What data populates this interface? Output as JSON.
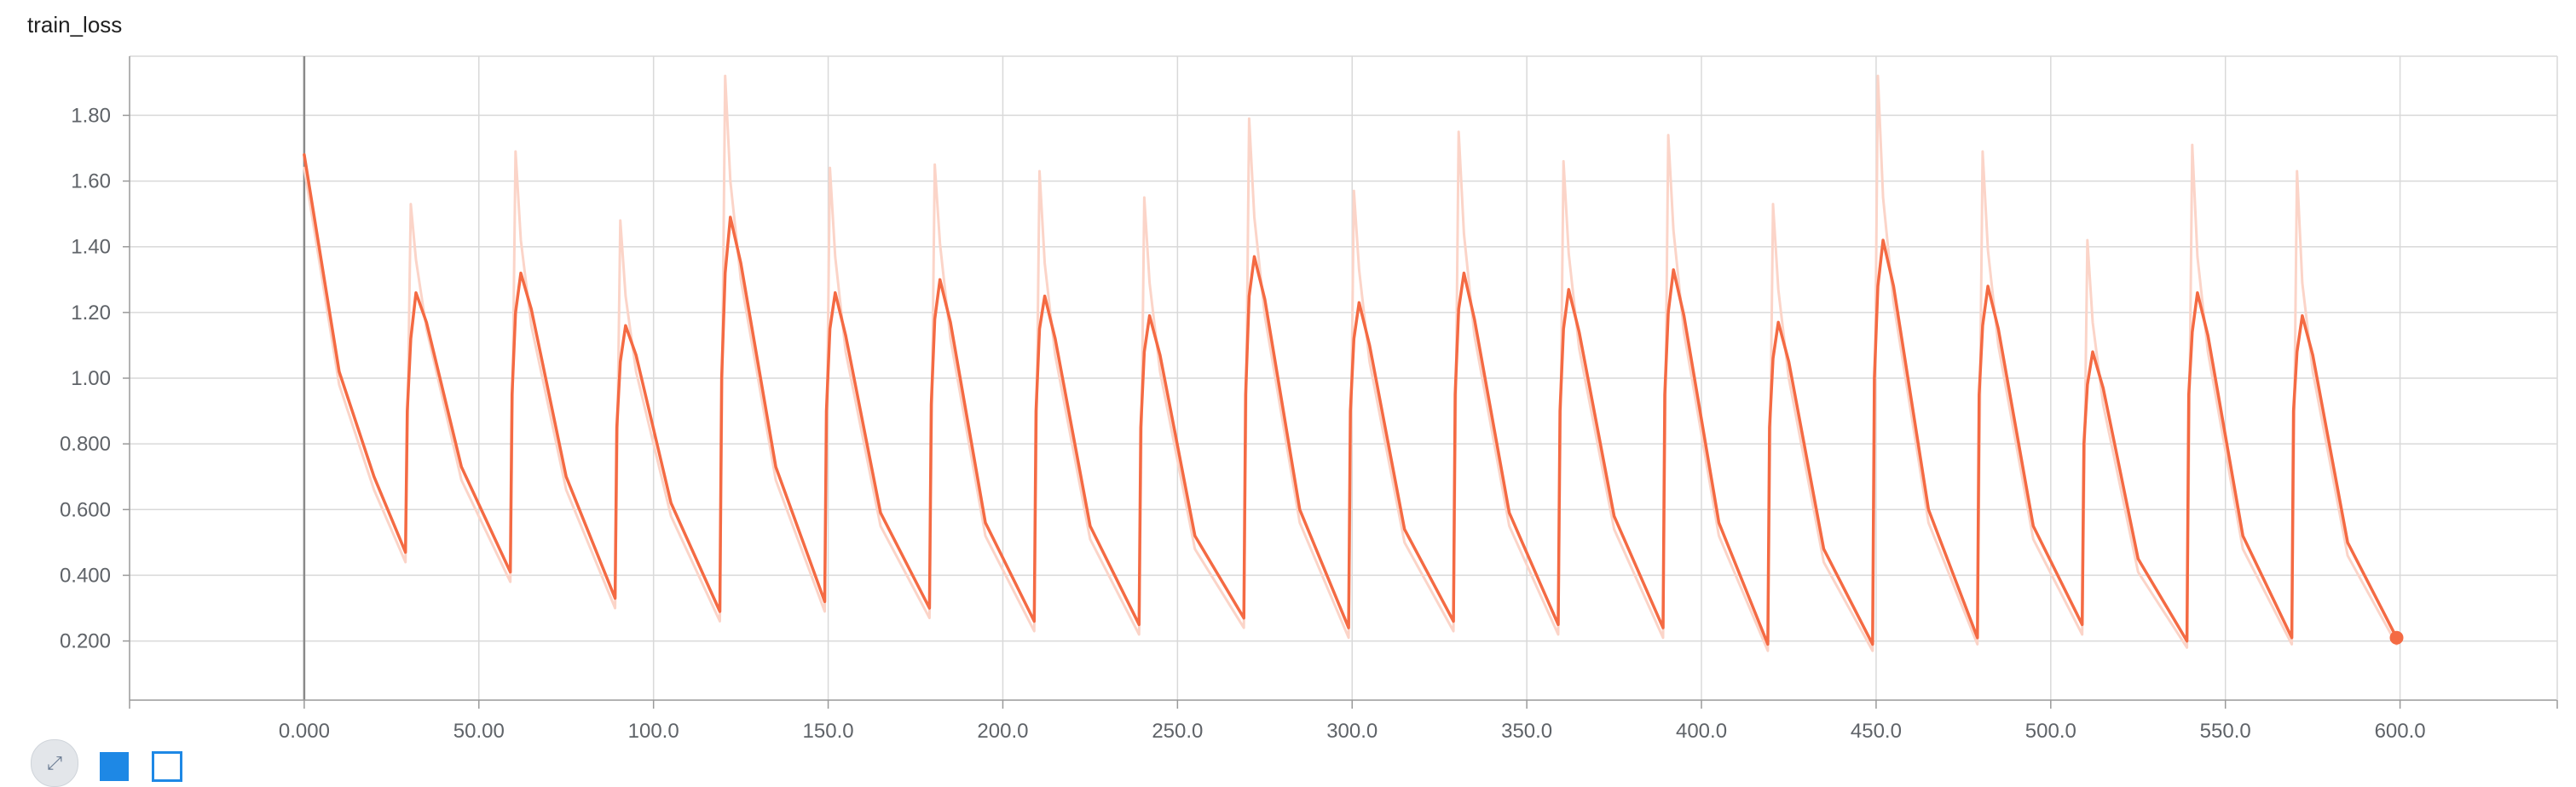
{
  "card": {
    "title": "train_loss"
  },
  "toolbar": {
    "expand_icon": "expand-icon",
    "log_scale_icon": "log-scale-icon",
    "fit_domain_icon": "fit-domain-icon"
  },
  "colors": {
    "smoothed": "#f46a43",
    "raw": "#fbd4c8",
    "grid": "#d9d9d9",
    "axis": "#9a9a9a"
  },
  "chart_data": {
    "type": "line",
    "title": "train_loss",
    "xlabel": "",
    "ylabel": "",
    "xlim": [
      -50,
      645
    ],
    "ylim": [
      0.02,
      1.98
    ],
    "x_ticks": [
      {
        "value": 0,
        "label": "0.000"
      },
      {
        "value": 50,
        "label": "50.00"
      },
      {
        "value": 100,
        "label": "100.0"
      },
      {
        "value": 150,
        "label": "150.0"
      },
      {
        "value": 200,
        "label": "200.0"
      },
      {
        "value": 250,
        "label": "250.0"
      },
      {
        "value": 300,
        "label": "300.0"
      },
      {
        "value": 350,
        "label": "350.0"
      },
      {
        "value": 400,
        "label": "400.0"
      },
      {
        "value": 450,
        "label": "450.0"
      },
      {
        "value": 500,
        "label": "500.0"
      },
      {
        "value": 550,
        "label": "550.0"
      },
      {
        "value": 600,
        "label": "600.0"
      }
    ],
    "y_ticks": [
      {
        "value": 0.2,
        "label": "0.200"
      },
      {
        "value": 0.4,
        "label": "0.400"
      },
      {
        "value": 0.6,
        "label": "0.600"
      },
      {
        "value": 0.8,
        "label": "0.800"
      },
      {
        "value": 1.0,
        "label": "1.00"
      },
      {
        "value": 1.2,
        "label": "1.20"
      },
      {
        "value": 1.4,
        "label": "1.40"
      },
      {
        "value": 1.6,
        "label": "1.60"
      },
      {
        "value": 1.8,
        "label": "1.80"
      }
    ],
    "grid": true,
    "series": [
      {
        "role": "smoothed",
        "x": [
          0,
          10,
          20,
          29,
          29.5,
          30.5,
          32,
          35,
          45,
          59,
          59.5,
          60.5,
          62,
          65,
          75,
          89,
          89.5,
          90.5,
          92,
          95,
          105,
          119,
          119.5,
          120.5,
          122,
          125,
          135,
          149,
          149.5,
          150.5,
          152,
          155,
          165,
          179,
          179.5,
          180.5,
          182,
          185,
          195,
          209,
          209.5,
          210.5,
          212,
          215,
          225,
          239,
          239.5,
          240.5,
          242,
          245,
          255,
          269,
          269.5,
          270.5,
          272,
          275,
          285,
          299,
          299.5,
          300.5,
          302,
          305,
          315,
          329,
          329.5,
          330.5,
          332,
          335,
          345,
          359,
          359.5,
          360.5,
          362,
          365,
          375,
          389,
          389.5,
          390.5,
          392,
          395,
          405,
          419,
          419.5,
          420.5,
          422,
          425,
          435,
          449,
          449.5,
          450.5,
          452,
          455,
          465,
          479,
          479.5,
          480.5,
          482,
          485,
          495,
          509,
          509.5,
          510.5,
          512,
          515,
          525,
          539,
          539.5,
          540.5,
          542,
          545,
          555,
          569,
          569.5,
          570.5,
          572,
          575,
          585,
          599
        ],
        "y": [
          1.68,
          1.02,
          0.7,
          0.47,
          0.9,
          1.12,
          1.26,
          1.17,
          0.73,
          0.41,
          0.95,
          1.2,
          1.32,
          1.21,
          0.7,
          0.33,
          0.85,
          1.05,
          1.16,
          1.07,
          0.62,
          0.29,
          1.0,
          1.32,
          1.49,
          1.35,
          0.73,
          0.32,
          0.9,
          1.15,
          1.26,
          1.13,
          0.59,
          0.3,
          0.92,
          1.18,
          1.3,
          1.17,
          0.56,
          0.26,
          0.9,
          1.15,
          1.25,
          1.12,
          0.55,
          0.25,
          0.85,
          1.08,
          1.19,
          1.07,
          0.52,
          0.27,
          0.95,
          1.25,
          1.37,
          1.24,
          0.6,
          0.24,
          0.9,
          1.12,
          1.23,
          1.1,
          0.54,
          0.26,
          0.95,
          1.21,
          1.32,
          1.18,
          0.59,
          0.25,
          0.9,
          1.15,
          1.27,
          1.14,
          0.58,
          0.24,
          0.95,
          1.2,
          1.33,
          1.19,
          0.56,
          0.19,
          0.85,
          1.06,
          1.17,
          1.05,
          0.48,
          0.19,
          1.0,
          1.28,
          1.42,
          1.28,
          0.6,
          0.21,
          0.95,
          1.16,
          1.28,
          1.15,
          0.55,
          0.25,
          0.8,
          0.98,
          1.08,
          0.97,
          0.45,
          0.2,
          0.95,
          1.14,
          1.26,
          1.13,
          0.52,
          0.21,
          0.9,
          1.08,
          1.19,
          1.07,
          0.5,
          0.21
        ]
      },
      {
        "role": "raw",
        "x": [
          0,
          10,
          20,
          29,
          30.5,
          32,
          35,
          45,
          59,
          60.5,
          62,
          65,
          75,
          89,
          90.5,
          92,
          95,
          105,
          119,
          120.5,
          122,
          125,
          135,
          149,
          150.5,
          152,
          155,
          165,
          179,
          180.5,
          182,
          185,
          195,
          209,
          210.5,
          212,
          215,
          225,
          239,
          240.5,
          242,
          245,
          255,
          269,
          270.5,
          272,
          275,
          285,
          299,
          300.5,
          302,
          305,
          315,
          329,
          330.5,
          332,
          335,
          345,
          359,
          360.5,
          362,
          365,
          375,
          389,
          390.5,
          392,
          395,
          405,
          419,
          420.5,
          422,
          425,
          435,
          449,
          450.5,
          452,
          455,
          465,
          479,
          480.5,
          482,
          485,
          495,
          509,
          510.5,
          512,
          515,
          525,
          539,
          540.5,
          542,
          545,
          555,
          569,
          570.5,
          572,
          575,
          585,
          599
        ],
        "y": [
          1.64,
          0.98,
          0.66,
          0.44,
          1.53,
          1.36,
          1.15,
          0.69,
          0.38,
          1.69,
          1.42,
          1.16,
          0.66,
          0.3,
          1.48,
          1.25,
          1.02,
          0.58,
          0.26,
          1.92,
          1.6,
          1.3,
          0.69,
          0.29,
          1.64,
          1.37,
          1.08,
          0.55,
          0.27,
          1.65,
          1.41,
          1.12,
          0.52,
          0.23,
          1.63,
          1.35,
          1.07,
          0.51,
          0.22,
          1.55,
          1.29,
          1.02,
          0.48,
          0.24,
          1.79,
          1.49,
          1.19,
          0.56,
          0.21,
          1.57,
          1.33,
          1.05,
          0.5,
          0.23,
          1.75,
          1.44,
          1.13,
          0.55,
          0.22,
          1.66,
          1.38,
          1.09,
          0.54,
          0.21,
          1.74,
          1.45,
          1.14,
          0.52,
          0.17,
          1.53,
          1.27,
          1.0,
          0.44,
          0.17,
          1.92,
          1.55,
          1.23,
          0.56,
          0.19,
          1.69,
          1.39,
          1.1,
          0.51,
          0.22,
          1.42,
          1.17,
          0.92,
          0.41,
          0.18,
          1.71,
          1.37,
          1.08,
          0.48,
          0.19,
          1.63,
          1.29,
          1.02,
          0.46,
          0.19
        ]
      }
    ],
    "end_point": {
      "x": 599,
      "y": 0.21
    }
  }
}
